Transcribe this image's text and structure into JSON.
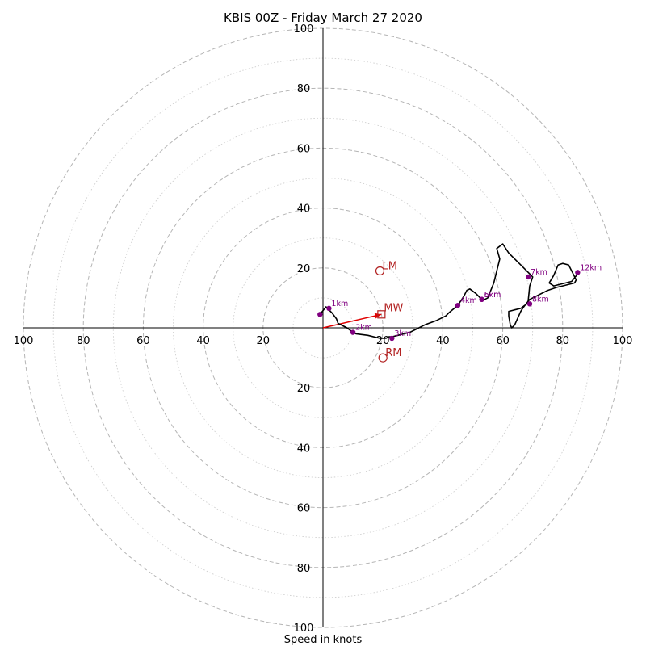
{
  "chart_data": {
    "type": "hodograph",
    "title": "KBIS 00Z - Friday March 27 2020",
    "xlabel": "Speed in knots",
    "max_speed": 100,
    "ring_step": 10,
    "ring_label_step": 20,
    "tick_labels": [
      "20",
      "40",
      "60",
      "80",
      "100"
    ],
    "grid": true,
    "trace_color": "#000000",
    "height_marker_color": "#800080",
    "motion_color": "#b22222",
    "shear_vector_color": "#e00000",
    "trace": [
      [
        -1,
        4.5
      ],
      [
        1,
        7
      ],
      [
        2,
        6
      ],
      [
        3,
        5
      ],
      [
        4.5,
        3
      ],
      [
        5,
        1.5
      ],
      [
        8,
        0
      ],
      [
        10,
        -1.5
      ],
      [
        11,
        -2
      ],
      [
        15,
        -2.5
      ],
      [
        19,
        -3.5
      ],
      [
        20,
        -3.5
      ],
      [
        21,
        -3.5
      ],
      [
        22,
        -3
      ],
      [
        23,
        -3
      ],
      [
        25,
        -2.5
      ],
      [
        29,
        -1.5
      ],
      [
        31,
        -0.5
      ],
      [
        34,
        1
      ],
      [
        38,
        2.5
      ],
      [
        41,
        4
      ],
      [
        42,
        5
      ],
      [
        45,
        7.5
      ],
      [
        47,
        10.5
      ],
      [
        48,
        12.5
      ],
      [
        49,
        13
      ],
      [
        51,
        11.5
      ],
      [
        53,
        9.5
      ],
      [
        54,
        9.5
      ],
      [
        55,
        10
      ],
      [
        57,
        15
      ],
      [
        58,
        19
      ],
      [
        59,
        23
      ],
      [
        58,
        26.5
      ],
      [
        60,
        28
      ],
      [
        62,
        25
      ],
      [
        64,
        23
      ],
      [
        66,
        21
      ],
      [
        69,
        18
      ],
      [
        70,
        17
      ],
      [
        69,
        14
      ],
      [
        68.5,
        9
      ],
      [
        68,
        8
      ],
      [
        66,
        6.5
      ],
      [
        64,
        6
      ],
      [
        62,
        5.5
      ],
      [
        62,
        4
      ],
      [
        62.5,
        1
      ],
      [
        63,
        0
      ],
      [
        64,
        1
      ],
      [
        66,
        5.5
      ],
      [
        67,
        7
      ],
      [
        69,
        9.5
      ],
      [
        72,
        11
      ],
      [
        75,
        12.5
      ],
      [
        78,
        13.5
      ],
      [
        80,
        14
      ],
      [
        84,
        15
      ],
      [
        84.5,
        16
      ],
      [
        83.5,
        18
      ],
      [
        82,
        21
      ],
      [
        80,
        21.5
      ],
      [
        78.5,
        21
      ],
      [
        77,
        17.5
      ],
      [
        75.5,
        15
      ],
      [
        77,
        14
      ],
      [
        81,
        15
      ],
      [
        83,
        15.5
      ],
      [
        85,
        18
      ]
    ],
    "height_markers": [
      {
        "label": "1km",
        "u": 2,
        "v": 6.5
      },
      {
        "label": "2km",
        "u": 10,
        "v": -1.5
      },
      {
        "label": "3km",
        "u": 23,
        "v": -3.5
      },
      {
        "label": "4km",
        "u": 45,
        "v": 7.5
      },
      {
        "label": "5km",
        "u": 53,
        "v": 9.5
      },
      {
        "label": "6km",
        "u": 53,
        "v": 9.5
      },
      {
        "label": "7km",
        "u": 68.5,
        "v": 17
      },
      {
        "label": "8km",
        "u": 69,
        "v": 8
      },
      {
        "label": "12km",
        "u": 85,
        "v": 18.5
      }
    ],
    "unlabeled_markers": [
      {
        "u": -1,
        "v": 4.5
      }
    ],
    "storm_motion": {
      "mean_wind": {
        "label": "MW",
        "u": 19.5,
        "v": 4.5
      },
      "left_mover": {
        "label": "LM",
        "u": 19,
        "v": 19
      },
      "right_mover": {
        "label": "RM",
        "u": 20,
        "v": -10
      }
    },
    "shear_vector": {
      "from": [
        0,
        0
      ],
      "to": [
        19.5,
        4.5
      ]
    }
  }
}
